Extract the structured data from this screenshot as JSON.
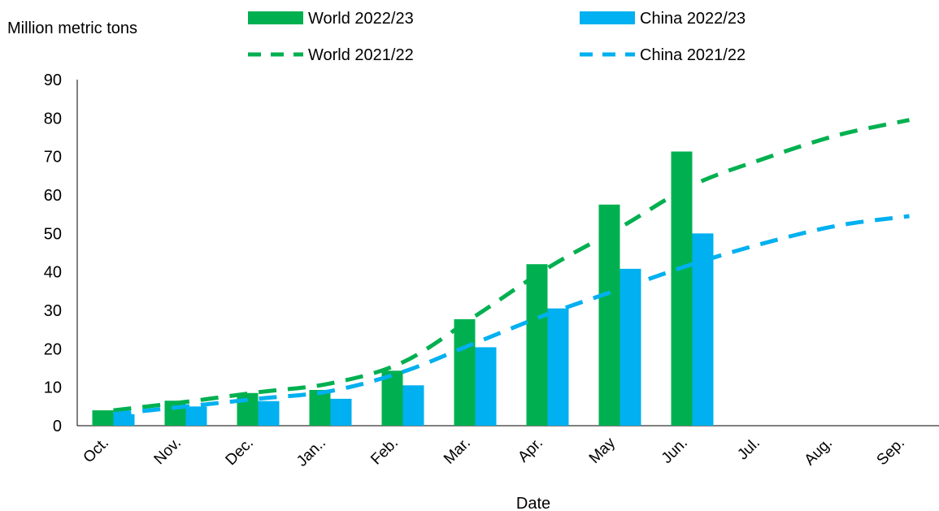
{
  "chart_data": {
    "type": "bar",
    "ylabel": "Million metric tons",
    "xlabel": "Date",
    "ylim": [
      0,
      90
    ],
    "yticks": [
      0,
      10,
      20,
      30,
      40,
      50,
      60,
      70,
      80,
      90
    ],
    "categories": [
      "Oct.",
      "Nov.",
      "Dec.",
      "Jan..",
      "Feb.",
      "Mar.",
      "Apr.",
      "May",
      "Jun.",
      "Jul.",
      "Aug.",
      "Sep."
    ],
    "series": [
      {
        "name": "World 2022/23",
        "kind": "bar",
        "color": "#00b050",
        "values": [
          4,
          6.5,
          8.5,
          9.3,
          14.3,
          27.7,
          42,
          57.5,
          71.3,
          null,
          null,
          null
        ]
      },
      {
        "name": "China 2022/23",
        "kind": "bar",
        "color": "#00b0f0",
        "values": [
          3,
          5,
          6.4,
          7,
          10.5,
          20.4,
          30.5,
          40.8,
          50,
          null,
          null,
          null
        ]
      },
      {
        "name": "World 2021/22",
        "kind": "line-dashed",
        "color": "#00b050",
        "values": [
          4,
          6.2,
          8.7,
          11,
          16.5,
          28.5,
          41,
          51.5,
          62.5,
          69.5,
          75.5,
          79.5
        ]
      },
      {
        "name": "China 2021/22",
        "kind": "line-dashed",
        "color": "#00b0f0",
        "values": [
          3,
          5,
          7,
          9,
          14,
          21.5,
          29,
          35.5,
          42,
          47.5,
          52,
          54.5
        ]
      }
    ],
    "legend_position": "top",
    "grid": false
  }
}
